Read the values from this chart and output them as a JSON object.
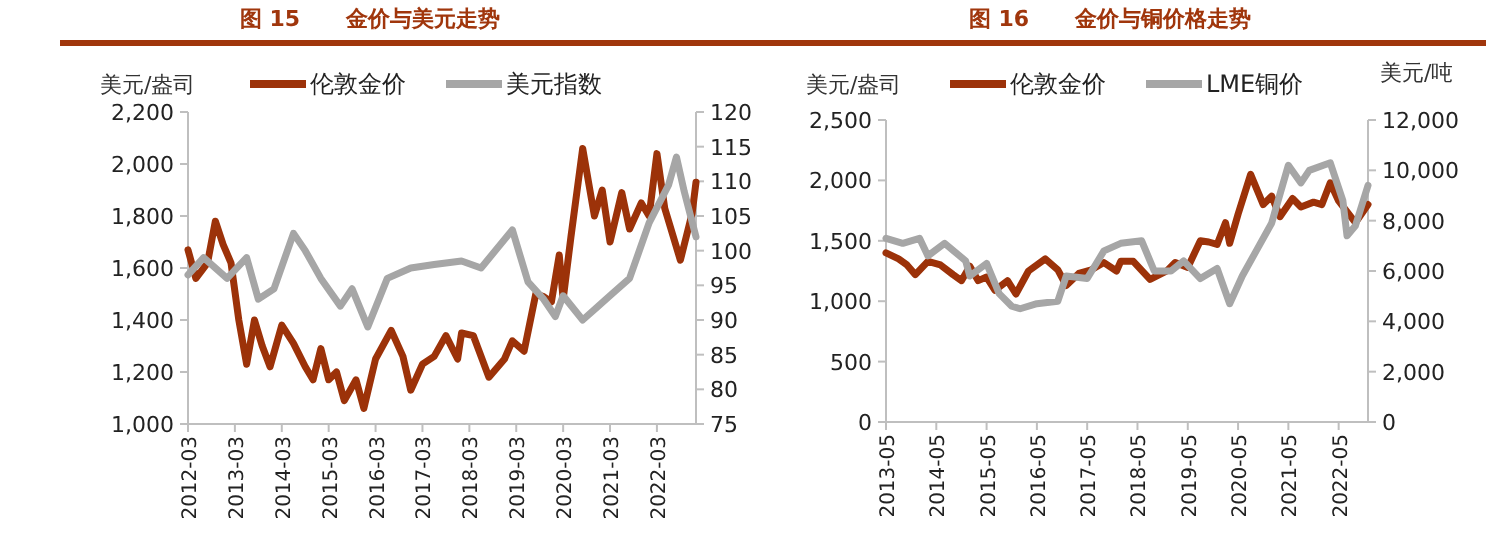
{
  "chart_data": [
    {
      "type": "line",
      "title": "图 15      金价与美元走势",
      "ylabel": "美元/盎司",
      "legend": "top",
      "grid": false,
      "line_style": "solid",
      "xlim": [
        "2012-03",
        "2023-01"
      ],
      "xticks": [
        "2012-03",
        "2013-03",
        "2014-03",
        "2015-03",
        "2016-03",
        "2017-03",
        "2018-03",
        "2019-03",
        "2020-03",
        "2021-03",
        "2022-03"
      ],
      "ylim": [
        1000,
        2200
      ],
      "yticks": [
        {
          "value": 1000,
          "label": "1,000"
        },
        {
          "value": 1200,
          "label": "1,200"
        },
        {
          "value": 1400,
          "label": "1,400"
        },
        {
          "value": 1600,
          "label": "1,600"
        },
        {
          "value": 1800,
          "label": "1,800"
        },
        {
          "value": 2000,
          "label": "2,000"
        },
        {
          "value": 2200,
          "label": "2,200"
        }
      ],
      "y2lim": [
        75,
        120
      ],
      "y2ticks": [
        75,
        80,
        85,
        90,
        95,
        100,
        105,
        110,
        115,
        120
      ],
      "series": [
        {
          "name": "伦敦金价",
          "color": "#9c3209",
          "x": [
            "2012-03",
            "2012-05",
            "2012-08",
            "2012-10",
            "2012-12",
            "2013-02",
            "2013-04",
            "2013-06",
            "2013-08",
            "2013-10",
            "2013-12",
            "2014-03",
            "2014-06",
            "2014-09",
            "2014-11",
            "2015-01",
            "2015-03",
            "2015-05",
            "2015-07",
            "2015-10",
            "2015-12",
            "2016-03",
            "2016-07",
            "2016-10",
            "2016-12",
            "2017-03",
            "2017-06",
            "2017-09",
            "2017-12",
            "2018-01",
            "2018-04",
            "2018-08",
            "2018-12",
            "2019-02",
            "2019-05",
            "2019-08",
            "2019-10",
            "2019-12",
            "2020-02",
            "2020-03",
            "2020-05",
            "2020-08",
            "2020-11",
            "2021-01",
            "2021-03",
            "2021-06",
            "2021-08",
            "2021-11",
            "2022-01",
            "2022-03",
            "2022-05",
            "2022-09",
            "2022-11",
            "2022-12",
            "2023-01"
          ],
          "values": [
            1670,
            1560,
            1620,
            1780,
            1690,
            1620,
            1400,
            1230,
            1400,
            1300,
            1220,
            1380,
            1310,
            1220,
            1170,
            1290,
            1170,
            1200,
            1090,
            1170,
            1060,
            1250,
            1360,
            1260,
            1130,
            1230,
            1260,
            1340,
            1250,
            1350,
            1340,
            1180,
            1250,
            1320,
            1280,
            1500,
            1490,
            1470,
            1650,
            1480,
            1720,
            2060,
            1800,
            1900,
            1700,
            1890,
            1750,
            1850,
            1800,
            2040,
            1830,
            1630,
            1750,
            1810,
            1930
          ]
        },
        {
          "name": "美元指数",
          "color": "#a6a6a6",
          "axis": "y2",
          "x": [
            "2012-03",
            "2012-07",
            "2013-01",
            "2013-06",
            "2013-09",
            "2014-01",
            "2014-06",
            "2014-09",
            "2015-01",
            "2015-06",
            "2015-09",
            "2016-01",
            "2016-06",
            "2016-12",
            "2017-06",
            "2018-01",
            "2018-06",
            "2019-02",
            "2019-06",
            "2019-10",
            "2020-01",
            "2020-03",
            "2020-08",
            "2020-12",
            "2021-03",
            "2021-08",
            "2022-01",
            "2022-06",
            "2022-08",
            "2022-10",
            "2023-01"
          ],
          "values": [
            96.5,
            99,
            96,
            99,
            93,
            94.5,
            102.5,
            100,
            96,
            92,
            94.5,
            89,
            96,
            97.5,
            98,
            98.5,
            97.5,
            103,
            95.5,
            93,
            90.5,
            93.5,
            90,
            92,
            93.5,
            96,
            104,
            109.5,
            113.5,
            108.5,
            102
          ]
        }
      ]
    },
    {
      "type": "line",
      "title": "图 16      金价与铜价格走势",
      "ylabel": "美元/盎司",
      "y2label": "美元/吨",
      "legend": "top",
      "grid": false,
      "line_style": "solid",
      "xlim": [
        "2013-05",
        "2022-12"
      ],
      "xticks": [
        "2013-05",
        "2014-05",
        "2015-05",
        "2016-05",
        "2017-05",
        "2018-05",
        "2019-05",
        "2020-05",
        "2021-05",
        "2022-05"
      ],
      "ylim": [
        0,
        2500
      ],
      "yticks": [
        0,
        500,
        {
          "value": 1000,
          "label": "1,000"
        },
        {
          "value": 1500,
          "label": "1,500"
        },
        {
          "value": 2000,
          "label": "2,000"
        },
        {
          "value": 2500,
          "label": "2,500"
        }
      ],
      "y2lim": [
        0,
        12000
      ],
      "y2ticks": [
        0,
        {
          "value": 2000,
          "label": "2,000"
        },
        {
          "value": 4000,
          "label": "4,000"
        },
        {
          "value": 6000,
          "label": "6,000"
        },
        {
          "value": 8000,
          "label": "8,000"
        },
        {
          "value": 10000,
          "label": "10,000"
        },
        {
          "value": 12000,
          "label": "12,000"
        }
      ],
      "series": [
        {
          "name": "伦敦金价",
          "color": "#9c3209",
          "x": [
            "2013-05",
            "2013-08",
            "2013-10",
            "2013-12",
            "2014-03",
            "2014-06",
            "2014-09",
            "2014-11",
            "2015-01",
            "2015-03",
            "2015-05",
            "2015-07",
            "2015-10",
            "2015-12",
            "2016-03",
            "2016-07",
            "2016-10",
            "2016-12",
            "2017-03",
            "2017-06",
            "2017-09",
            "2017-12",
            "2018-01",
            "2018-04",
            "2018-08",
            "2018-12",
            "2019-02",
            "2019-05",
            "2019-08",
            "2019-10",
            "2019-12",
            "2020-02",
            "2020-03",
            "2020-05",
            "2020-08",
            "2020-11",
            "2021-01",
            "2021-03",
            "2021-06",
            "2021-08",
            "2021-11",
            "2022-01",
            "2022-03",
            "2022-05",
            "2022-09",
            "2022-12"
          ],
          "values": [
            1400,
            1350,
            1300,
            1220,
            1330,
            1300,
            1220,
            1170,
            1290,
            1170,
            1200,
            1090,
            1170,
            1060,
            1250,
            1350,
            1260,
            1130,
            1230,
            1260,
            1320,
            1250,
            1330,
            1330,
            1180,
            1250,
            1320,
            1280,
            1500,
            1490,
            1470,
            1650,
            1480,
            1720,
            2050,
            1800,
            1870,
            1700,
            1850,
            1780,
            1820,
            1800,
            1980,
            1830,
            1650,
            1800
          ]
        },
        {
          "name": "LME铜价",
          "color": "#a6a6a6",
          "axis": "y2",
          "x": [
            "2013-05",
            "2013-09",
            "2014-01",
            "2014-03",
            "2014-07",
            "2014-12",
            "2015-01",
            "2015-05",
            "2015-08",
            "2015-11",
            "2016-01",
            "2016-05",
            "2016-10",
            "2016-12",
            "2017-05",
            "2017-09",
            "2018-01",
            "2018-06",
            "2018-09",
            "2019-01",
            "2019-04",
            "2019-08",
            "2019-12",
            "2020-03",
            "2020-06",
            "2020-09",
            "2021-01",
            "2021-05",
            "2021-08",
            "2021-10",
            "2022-03",
            "2022-06",
            "2022-07",
            "2022-09",
            "2022-12"
          ],
          "values": [
            7300,
            7100,
            7300,
            6600,
            7100,
            6400,
            5800,
            6300,
            5100,
            4600,
            4500,
            4700,
            4800,
            5800,
            5700,
            6800,
            7100,
            7200,
            6000,
            6000,
            6400,
            5700,
            6100,
            4700,
            5800,
            6700,
            7900,
            10200,
            9500,
            10000,
            10300,
            8800,
            7400,
            7800,
            9400
          ]
        }
      ]
    }
  ]
}
